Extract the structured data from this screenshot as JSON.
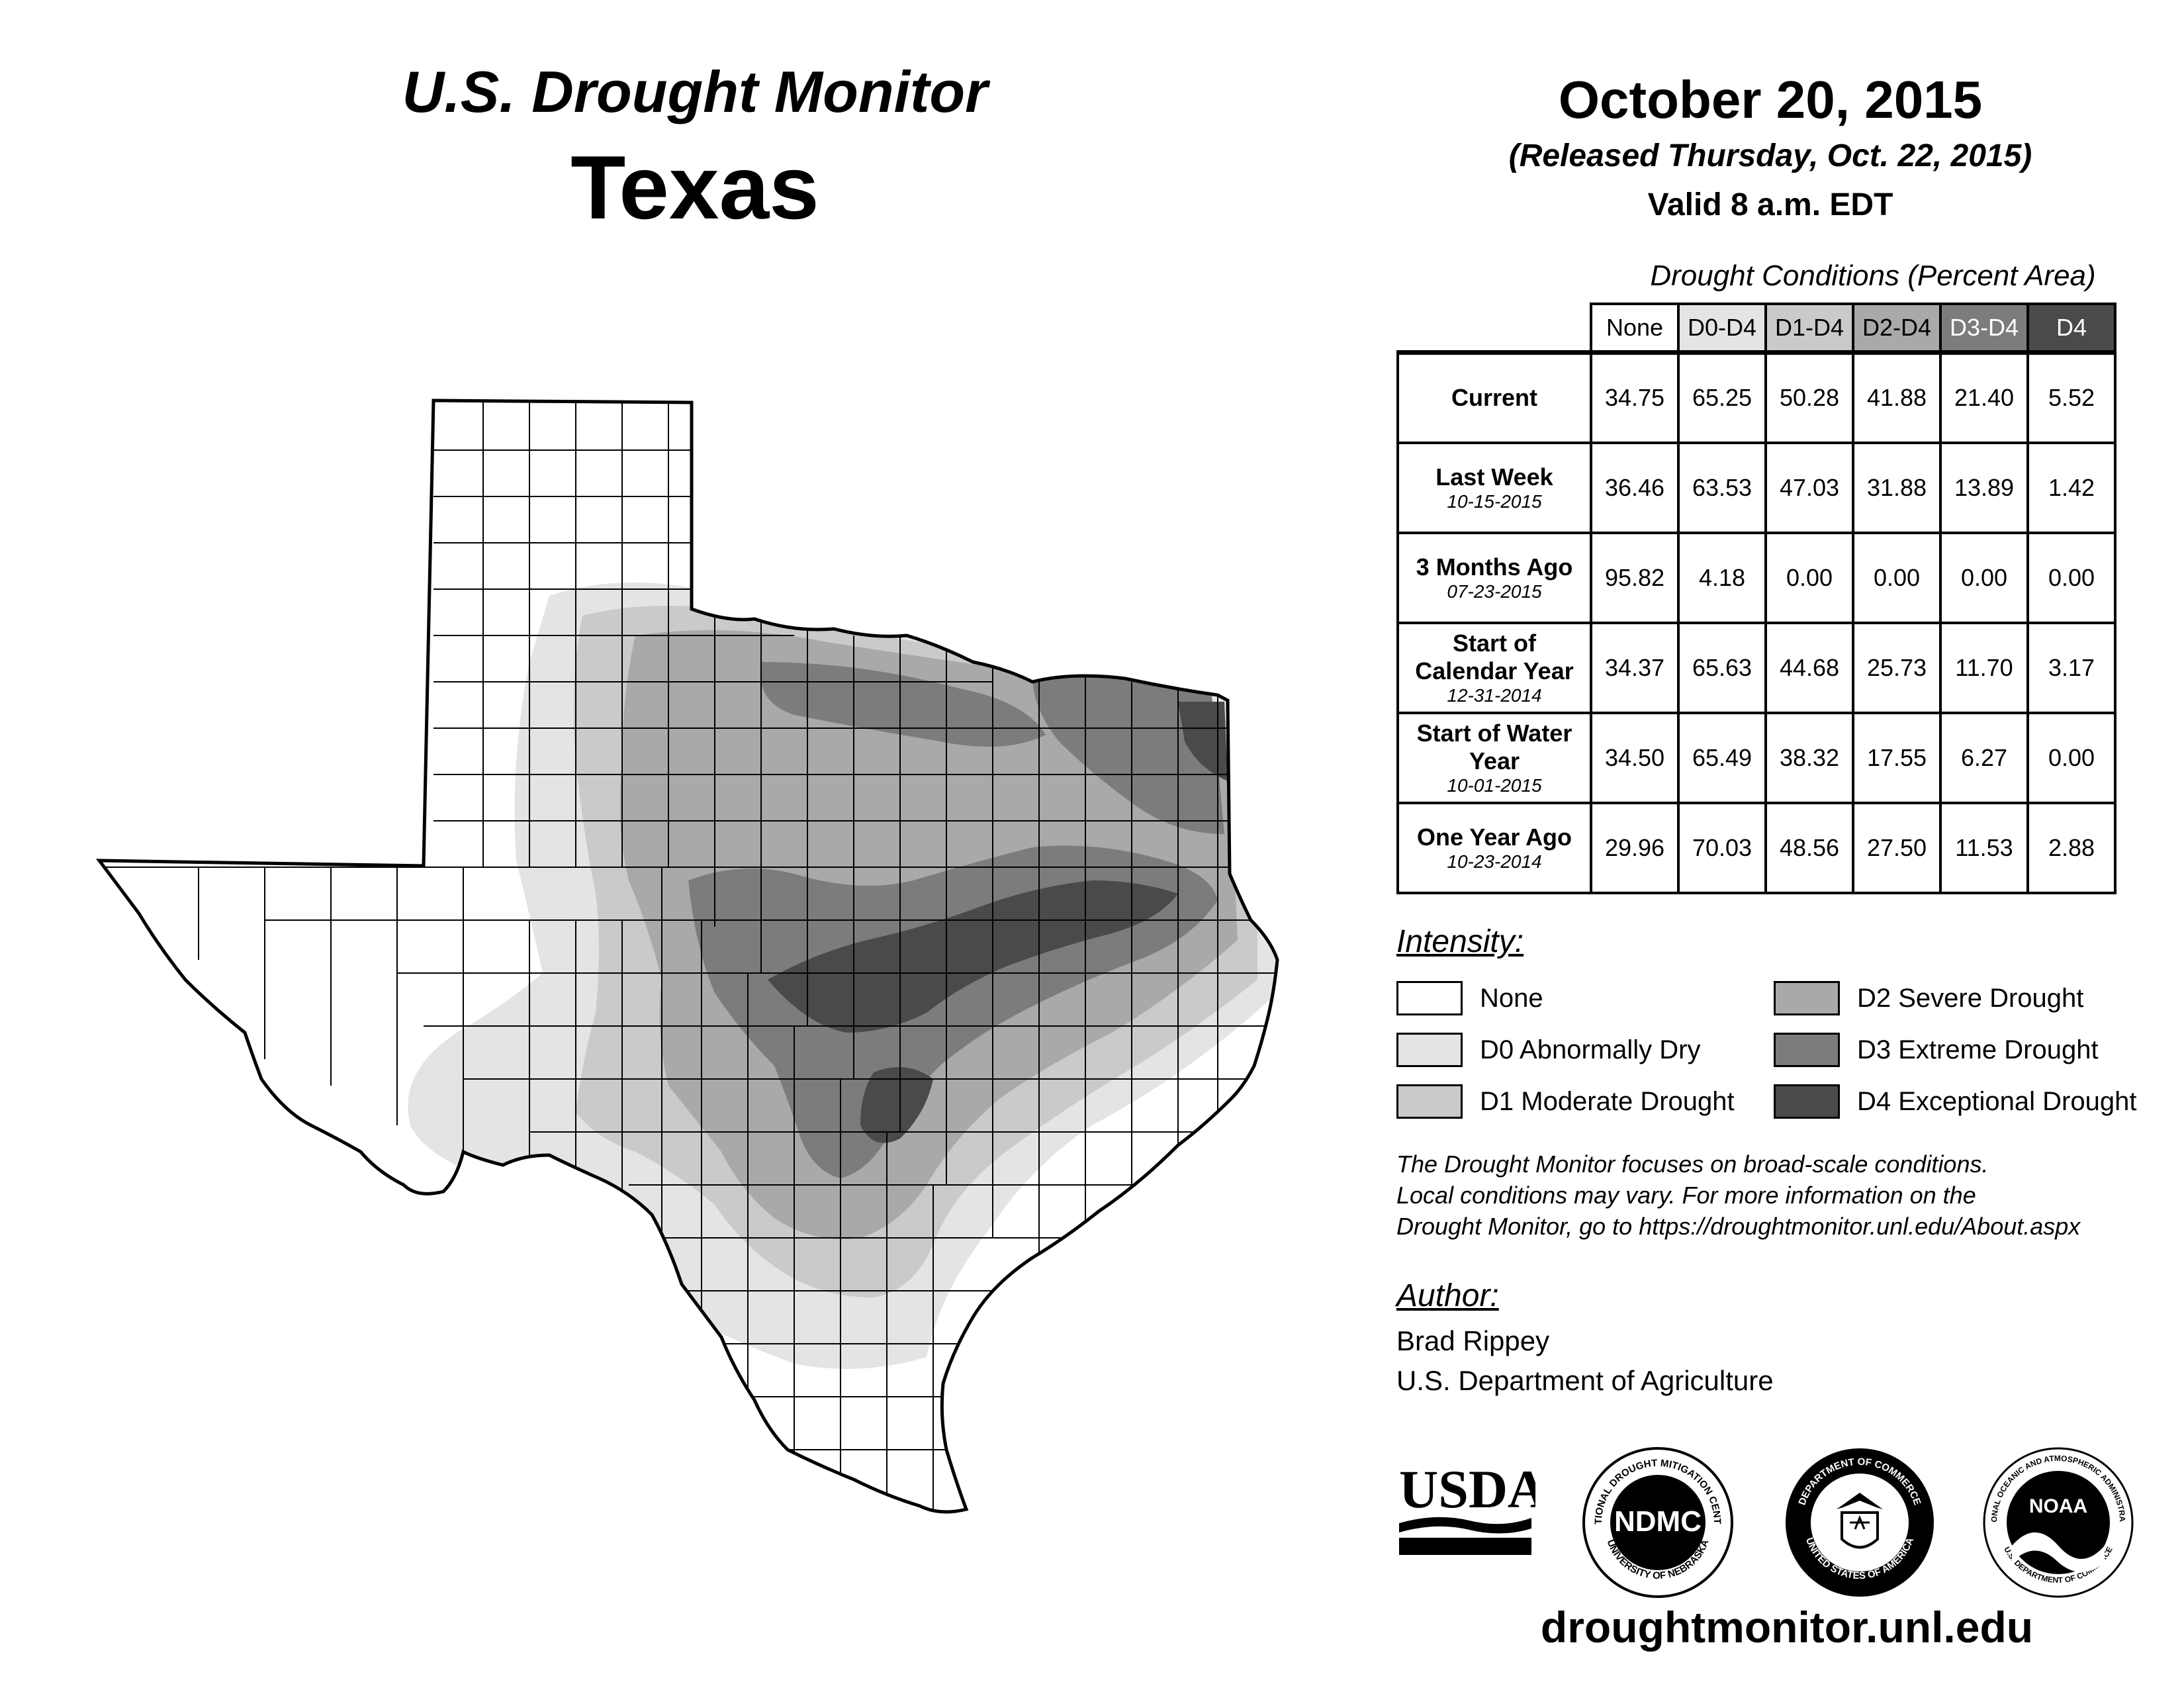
{
  "header": {
    "subtitle": "U.S. Drought Monitor",
    "state": "Texas",
    "date": "October 20, 2015",
    "released": "(Released Thursday, Oct. 22, 2015)",
    "valid": "Valid 8 a.m. EDT"
  },
  "table": {
    "title": "Drought Conditions (Percent Area)",
    "columns": [
      "None",
      "D0-D4",
      "D1-D4",
      "D2-D4",
      "D3-D4",
      "D4"
    ],
    "rows": [
      {
        "label": "Current",
        "date": "",
        "values": [
          "34.75",
          "65.25",
          "50.28",
          "41.88",
          "21.40",
          "5.52"
        ]
      },
      {
        "label": "Last Week",
        "date": "10-15-2015",
        "values": [
          "36.46",
          "63.53",
          "47.03",
          "31.88",
          "13.89",
          "1.42"
        ]
      },
      {
        "label": "3 Months Ago",
        "date": "07-23-2015",
        "values": [
          "95.82",
          "4.18",
          "0.00",
          "0.00",
          "0.00",
          "0.00"
        ]
      },
      {
        "label": "Start of Calendar Year",
        "date": "12-31-2014",
        "values": [
          "34.37",
          "65.63",
          "44.68",
          "25.73",
          "11.70",
          "3.17"
        ]
      },
      {
        "label": "Start of Water Year",
        "date": "10-01-2015",
        "values": [
          "34.50",
          "65.49",
          "38.32",
          "17.55",
          "6.27",
          "0.00"
        ]
      },
      {
        "label": "One Year Ago",
        "date": "10-23-2014",
        "values": [
          "29.96",
          "70.03",
          "48.56",
          "27.50",
          "11.53",
          "2.88"
        ]
      }
    ]
  },
  "legend": {
    "title": "Intensity:",
    "items": [
      {
        "label": "None",
        "color": "#ffffff"
      },
      {
        "label": "D0 Abnormally Dry",
        "color": "#e4e4e4"
      },
      {
        "label": "D1 Moderate Drought",
        "color": "#cacaca"
      },
      {
        "label": "D2 Severe Drought",
        "color": "#a9a9a9"
      },
      {
        "label": "D3 Extreme Drought",
        "color": "#7c7c7c"
      },
      {
        "label": "D4 Exceptional Drought",
        "color": "#4a4a4a"
      }
    ]
  },
  "disclaimer": [
    "The Drought Monitor focuses on broad-scale conditions.",
    "Local conditions may vary. For more information on the",
    "Drought Monitor, go to https://droughtmonitor.unl.edu/About.aspx"
  ],
  "author": {
    "title": "Author:",
    "name": "Brad Rippey",
    "org": "U.S. Department of Agriculture"
  },
  "logos": {
    "usda": "USDA",
    "ndmc": "NDMC",
    "ndmc_ring_top": "NATIONAL DROUGHT MITIGATION CENTER",
    "ndmc_ring_bottom": "UNIVERSITY OF NEBRASKA",
    "doc_ring_top": "DEPARTMENT OF COMMERCE",
    "doc_ring_bottom": "UNITED STATES OF AMERICA",
    "noaa": "NOAA",
    "noaa_ring_top": "NATIONAL OCEANIC AND ATMOSPHERIC ADMINISTRATION",
    "noaa_ring_bottom": "U.S. DEPARTMENT OF COMMERCE"
  },
  "website": "droughtmonitor.unl.edu"
}
